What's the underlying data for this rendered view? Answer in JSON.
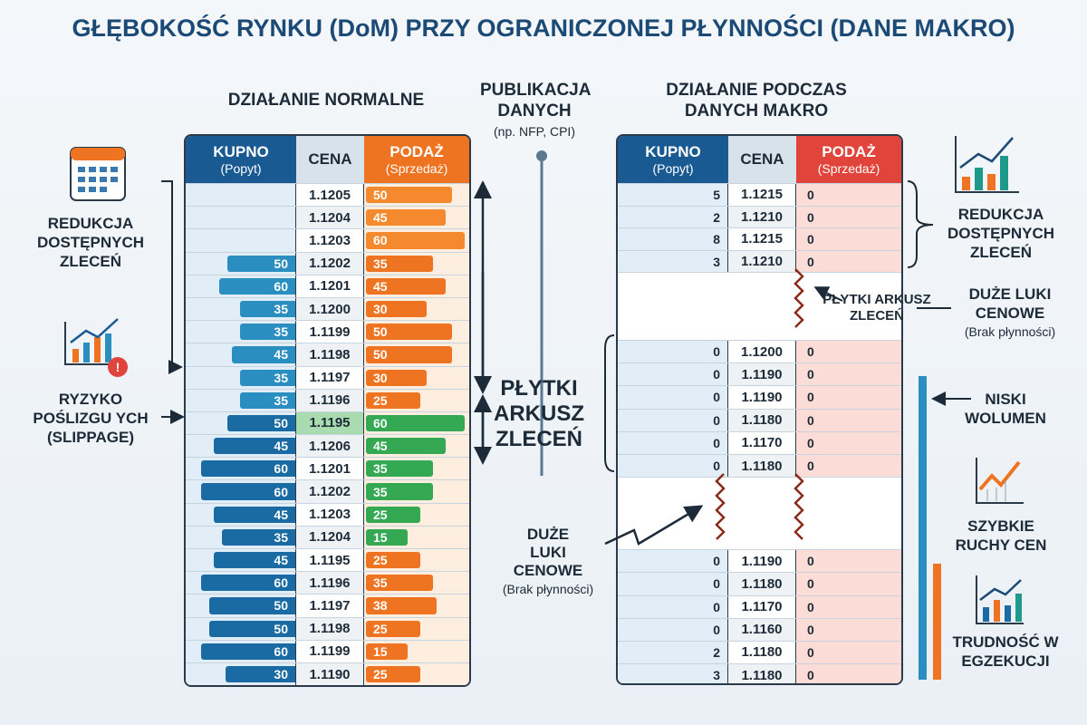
{
  "title": "GŁĘBOKOŚĆ RYNKU (DoM) PRZY OGRANICZONEJ PŁYNNOŚCI (DANE MAKRO)",
  "left_panel": {
    "title": "DZIAŁANIE NORMALNE",
    "headers": {
      "bid": "KUPNO",
      "bid_sub": "(Popyt)",
      "price": "CENA",
      "ask": "PODAŻ",
      "ask_sub": "(Sprzedaż)"
    },
    "rows": [
      {
        "bid": "",
        "price": "1.1205",
        "ask": "50"
      },
      {
        "bid": "",
        "price": "1.1204",
        "ask": "45"
      },
      {
        "bid": "",
        "price": "1.1203",
        "ask": "60"
      },
      {
        "bid": "50",
        "price": "1.1202",
        "ask": "35"
      },
      {
        "bid": "60",
        "price": "1.1201",
        "ask": "45"
      },
      {
        "bid": "35",
        "price": "1.1200",
        "ask": "30"
      },
      {
        "bid": "35",
        "price": "1.1199",
        "ask": "50"
      },
      {
        "bid": "45",
        "price": "1.1198",
        "ask": "50"
      },
      {
        "bid": "35",
        "price": "1.1197",
        "ask": "30"
      },
      {
        "bid": "35",
        "price": "1.1196",
        "ask": "25"
      },
      {
        "bid": "50",
        "price": "1.1195",
        "ask": "60"
      },
      {
        "bid": "45",
        "price": "1.1206",
        "ask": "45"
      },
      {
        "bid": "60",
        "price": "1.1201",
        "ask": "35"
      },
      {
        "bid": "60",
        "price": "1.1202",
        "ask": "35"
      },
      {
        "bid": "45",
        "price": "1.1203",
        "ask": "25"
      },
      {
        "bid": "35",
        "price": "1.1204",
        "ask": "15"
      },
      {
        "bid": "45",
        "price": "1.1195",
        "ask": "25"
      },
      {
        "bid": "60",
        "price": "1.1196",
        "ask": "35"
      },
      {
        "bid": "50",
        "price": "1.1197",
        "ask": "38"
      },
      {
        "bid": "50",
        "price": "1.1198",
        "ask": "25"
      },
      {
        "bid": "60",
        "price": "1.1199",
        "ask": "15"
      },
      {
        "bid": "30",
        "price": "1.1190",
        "ask": "25"
      }
    ],
    "annotations": {
      "reduction": "REDUKCJA DOSTĘPNYCH ZLECEŃ",
      "slippage": "RYZYKO POŚLIZGU YCH",
      "slippage_sub": "(SLIPPAGE)"
    }
  },
  "center": {
    "publication": "PUBLIKACJA DANYCH",
    "publication_sub": "(np. NFP, CPI)",
    "shallow": "PŁYTKI ARKUSZ ZLECEŃ",
    "gaps": "DUŻE LUKI CENOWE",
    "gaps_sub": "(Brak płynności)"
  },
  "right_panel": {
    "title": "DZIAŁANIE PODCZAS DANYCH MAKRO",
    "headers": {
      "bid": "KUPNO",
      "bid_sub": "(Popyt)",
      "price": "CENA",
      "ask": "PODAŻ",
      "ask_sub": "(Sprzedaż)"
    },
    "groups": [
      [
        {
          "bid": "5",
          "price": "1.1215",
          "ask": "0"
        },
        {
          "bid": "2",
          "price": "1.1210",
          "ask": "0"
        },
        {
          "bid": "8",
          "price": "1.1215",
          "ask": "0"
        },
        {
          "bid": "3",
          "price": "1.1210",
          "ask": "0"
        }
      ],
      [
        {
          "bid": "0",
          "price": "1.1200",
          "ask": "0"
        },
        {
          "bid": "0",
          "price": "1.1190",
          "ask": "0"
        },
        {
          "bid": "0",
          "price": "1.1190",
          "ask": "0"
        },
        {
          "bid": "0",
          "price": "1.1180",
          "ask": "0"
        },
        {
          "bid": "0",
          "price": "1.1170",
          "ask": "0"
        },
        {
          "bid": "0",
          "price": "1.1180",
          "ask": "0"
        }
      ],
      [
        {
          "bid": "0",
          "price": "1.1190",
          "ask": "0"
        },
        {
          "bid": "0",
          "price": "1.1180",
          "ask": "0"
        },
        {
          "bid": "0",
          "price": "1.1170",
          "ask": "0"
        },
        {
          "bid": "0",
          "price": "1.1160",
          "ask": "0"
        },
        {
          "bid": "2",
          "price": "1.1180",
          "ask": "0"
        },
        {
          "bid": "3",
          "price": "1.1180",
          "ask": "0"
        }
      ]
    ],
    "annotations": {
      "reduction": "REDUKCJA DOSTĘPNYCH ZLECEŃ",
      "gaps": "DUŻE LUKI CENOWE",
      "gaps_sub": "(Brak płynności)",
      "shallow": "PŁYTKI ARKUSZ ZLECEŃ",
      "low_volume": "NISKI WOLUMEN",
      "fast_moves": "SZYBKIE RUCHY CEN",
      "execution": "TRUDNOŚĆ W EGZEKUCJI"
    }
  },
  "colors": {
    "bid": "#1a6aa3",
    "ask": "#ef7422",
    "ask_highlight": "#34a853",
    "header_blue": "#1a5a92",
    "header_red": "#e0443a",
    "title": "#1a4a75"
  }
}
